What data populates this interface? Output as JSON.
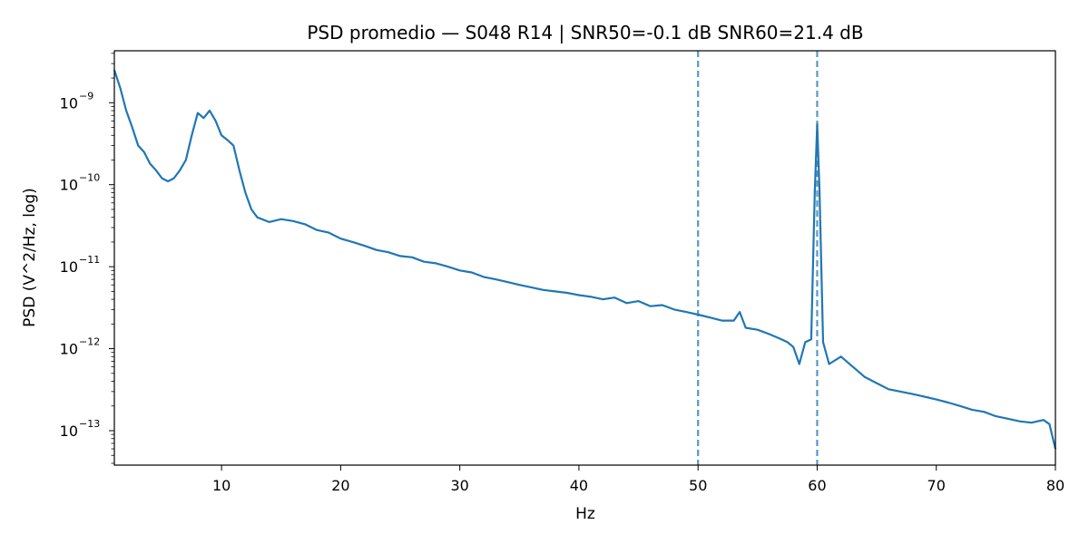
{
  "chart_data": {
    "type": "line",
    "title": "PSD promedio — S048 R14 | SNR50=-0.1 dB  SNR60=21.4 dB",
    "xlabel": "Hz",
    "ylabel": "PSD (V^2/Hz, log)",
    "xlim": [
      1,
      80
    ],
    "ylim": [
      3.8e-14,
      4.3e-09
    ],
    "yscale": "log",
    "grid": false,
    "x_ticks": [
      10,
      20,
      30,
      40,
      50,
      60,
      70,
      80
    ],
    "x_tick_labels": [
      "10",
      "20",
      "30",
      "40",
      "50",
      "60",
      "70",
      "80"
    ],
    "y_ticks": [
      1e-13,
      1e-12,
      1e-11,
      1e-10,
      1e-09
    ],
    "y_tick_labels": [
      "10",
      "10",
      "10",
      "10",
      "10"
    ],
    "y_tick_exponents": [
      "−13",
      "−12",
      "−11",
      "−10",
      "−9"
    ],
    "series": [
      {
        "color": "#1f77b4",
        "x": [
          1,
          1.5,
          2,
          2.5,
          3,
          3.5,
          4,
          4.5,
          5,
          5.5,
          6,
          6.5,
          7,
          7.5,
          8,
          8.5,
          9,
          9.5,
          10,
          10.5,
          11,
          11.5,
          12,
          12.5,
          13,
          14,
          15,
          16,
          17,
          18,
          19,
          20,
          21,
          22,
          23,
          24,
          25,
          26,
          27,
          28,
          29,
          30,
          31,
          32,
          33,
          34,
          35,
          36,
          37,
          38,
          39,
          40,
          41,
          42,
          43,
          44,
          45,
          46,
          47,
          48,
          49,
          50,
          51,
          52,
          53,
          53.5,
          54,
          55,
          56,
          57,
          57.5,
          58,
          58.5,
          59,
          59.5,
          59.8,
          60,
          60.2,
          60.5,
          61,
          62,
          63,
          64,
          65,
          66,
          67,
          68,
          69,
          70,
          71,
          72,
          73,
          74,
          75,
          76,
          77,
          78,
          79,
          79.5,
          80
        ],
        "y": [
          2.5e-09,
          1.5e-09,
          8e-10,
          5e-10,
          3e-10,
          2.5e-10,
          1.8e-10,
          1.5e-10,
          1.2e-10,
          1.1e-10,
          1.2e-10,
          1.5e-10,
          2e-10,
          4e-10,
          7.5e-10,
          6.5e-10,
          8e-10,
          6e-10,
          4e-10,
          3.5e-10,
          3e-10,
          1.5e-10,
          8e-11,
          5e-11,
          4e-11,
          3.5e-11,
          3.8e-11,
          3.6e-11,
          3.3e-11,
          2.8e-11,
          2.6e-11,
          2.2e-11,
          2e-11,
          1.8e-11,
          1.6e-11,
          1.5e-11,
          1.35e-11,
          1.3e-11,
          1.15e-11,
          1.1e-11,
          1e-11,
          9e-12,
          8.5e-12,
          7.5e-12,
          7e-12,
          6.5e-12,
          6e-12,
          5.6e-12,
          5.2e-12,
          5e-12,
          4.8e-12,
          4.5e-12,
          4.3e-12,
          4e-12,
          4.2e-12,
          3.6e-12,
          3.8e-12,
          3.3e-12,
          3.4e-12,
          3e-12,
          2.8e-12,
          2.6e-12,
          2.4e-12,
          2.2e-12,
          2.2e-12,
          2.8e-12,
          1.8e-12,
          1.7e-12,
          1.5e-12,
          1.3e-12,
          1.2e-12,
          1.05e-12,
          6.5e-13,
          1.2e-12,
          1.3e-12,
          8e-11,
          5.5e-10,
          8e-11,
          1.2e-12,
          6.5e-13,
          8e-13,
          6e-13,
          4.5e-13,
          3.8e-13,
          3.2e-13,
          3e-13,
          2.8e-13,
          2.6e-13,
          2.4e-13,
          2.2e-13,
          2e-13,
          1.8e-13,
          1.7e-13,
          1.5e-13,
          1.4e-13,
          1.3e-13,
          1.25e-13,
          1.35e-13,
          1.2e-13,
          6e-14
        ]
      }
    ],
    "vlines": [
      {
        "x": 50,
        "style": "dashed",
        "color": "#1f77b4"
      },
      {
        "x": 60,
        "style": "dashed",
        "color": "#1f77b4"
      }
    ]
  }
}
